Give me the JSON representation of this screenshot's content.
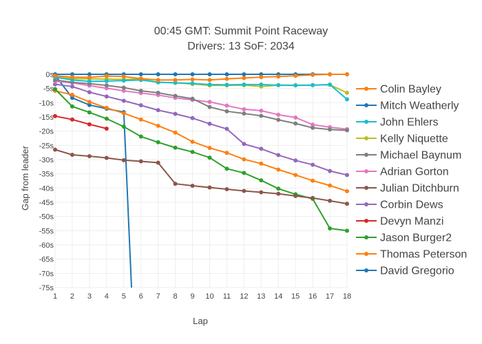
{
  "chart_data": {
    "type": "line",
    "title_line1": "00:45 GMT:  Summit Point Raceway",
    "title_line2": "Drivers: 13 SoF: 2034",
    "xlabel": "Lap",
    "ylabel": "Gap from leader",
    "xlim": [
      1,
      18
    ],
    "ylim": [
      -75,
      0
    ],
    "x_ticks": [
      1,
      2,
      3,
      4,
      5,
      6,
      7,
      8,
      9,
      10,
      11,
      12,
      13,
      14,
      15,
      16,
      17,
      18
    ],
    "y_ticks": [
      0,
      -5,
      -10,
      -15,
      -20,
      -25,
      -30,
      -35,
      -40,
      -45,
      -50,
      -55,
      -60,
      -65,
      -70,
      -75
    ],
    "y_tick_labels": [
      "0s",
      "-5s",
      "-10s",
      "-15s",
      "-20s",
      "-25s",
      "-30s",
      "-35s",
      "-40s",
      "-45s",
      "-50s",
      "-55s",
      "-60s",
      "-65s",
      "-70s",
      "-75s"
    ],
    "legend_position": "right",
    "series": [
      {
        "name": "Colin Bayley",
        "color": "#ff7f0e",
        "x": [
          1,
          2,
          3,
          4,
          5,
          6,
          7,
          8,
          9,
          10,
          11,
          12,
          13,
          14,
          15,
          16,
          17,
          18
        ],
        "y": [
          -0.5,
          -1,
          -1.1,
          -0.6,
          -0.8,
          -1.5,
          -2,
          -2,
          -1.8,
          -2,
          -1.6,
          -1.3,
          -1,
          -0.8,
          -0.5,
          -0.2,
          0,
          0
        ]
      },
      {
        "name": "Mitch Weatherly",
        "color": "#1f77b4",
        "x": [
          1,
          2,
          3,
          4,
          5,
          6,
          7,
          8,
          9,
          10,
          11,
          12,
          13,
          14,
          15,
          16,
          17,
          18
        ],
        "y": [
          0,
          0,
          0,
          0,
          0,
          0,
          0,
          0,
          0,
          0,
          0,
          0,
          0,
          0,
          0,
          0,
          0,
          0
        ]
      },
      {
        "name": "John Ehlers",
        "color": "#17becf",
        "x": [
          1,
          2,
          3,
          4,
          5,
          6,
          7,
          8,
          9,
          10,
          11,
          12,
          13,
          14,
          15,
          16,
          17,
          18
        ],
        "y": [
          -1,
          -2,
          -2.5,
          -2.4,
          -2.2,
          -2,
          -2.8,
          -3,
          -3.2,
          -3.6,
          -3.7,
          -3.6,
          -3.6,
          -3.8,
          -3.9,
          -3.8,
          -3.6,
          -8.8
        ]
      },
      {
        "name": "Kelly Niquette",
        "color": "#bcbd22",
        "x": [
          1,
          2,
          3,
          4,
          5,
          6,
          7,
          8,
          9,
          10,
          11,
          12,
          13,
          14,
          15,
          16,
          17,
          18
        ],
        "y": [
          -1,
          -1.5,
          -1.6,
          -1.7,
          -1.8,
          -1.7,
          -2.8,
          -3,
          -3.4,
          -3.9,
          -3.9,
          -3.8,
          -4.3,
          -3.8,
          -3.8,
          -3.8,
          -3.7,
          -6.5
        ]
      },
      {
        "name": "Michael Baynum",
        "color": "#7f7f7f",
        "x": [
          1,
          2,
          3,
          4,
          5,
          6,
          7,
          8,
          9,
          10,
          11,
          12,
          13,
          14,
          15,
          16,
          17,
          18
        ],
        "y": [
          -2,
          -2.8,
          -3.3,
          -3.9,
          -4.7,
          -5.8,
          -6.5,
          -7.6,
          -8.6,
          -11.5,
          -13,
          -13.8,
          -14.6,
          -16,
          -17.3,
          -18.8,
          -19.4,
          -19.7
        ]
      },
      {
        "name": "Adrian Gorton",
        "color": "#e377c2",
        "x": [
          1,
          2,
          3,
          4,
          5,
          6,
          7,
          8,
          9,
          10,
          11,
          12,
          13,
          14,
          15,
          16,
          17,
          18
        ],
        "y": [
          -2.5,
          -3,
          -4,
          -4.9,
          -5.8,
          -6.6,
          -7.3,
          -8.3,
          -9,
          -9.7,
          -11,
          -12.3,
          -12.8,
          -14.2,
          -15.2,
          -17.7,
          -18.6,
          -19.3
        ]
      },
      {
        "name": "Julian Ditchburn",
        "color": "#8c564b",
        "x": [
          1,
          2,
          3,
          4,
          5,
          6,
          7,
          8,
          9,
          10,
          11,
          12,
          13,
          14,
          15,
          16,
          17,
          18
        ],
        "y": [
          -26.5,
          -28.3,
          -28.8,
          -29.4,
          -30.2,
          -30.6,
          -31.1,
          -38.5,
          -39.2,
          -39.8,
          -40.4,
          -41,
          -41.5,
          -42,
          -42.8,
          -43.5,
          -44.5,
          -45.5
        ]
      },
      {
        "name": "Corbin Dews",
        "color": "#9467bd",
        "x": [
          1,
          2,
          3,
          4,
          5,
          6,
          7,
          8,
          9,
          10,
          11,
          12,
          13,
          14,
          15,
          16,
          17,
          18
        ],
        "y": [
          -3.5,
          -4.3,
          -6.3,
          -7.8,
          -9.3,
          -10.9,
          -12.6,
          -13.9,
          -15.4,
          -17.4,
          -19.2,
          -24.5,
          -26.2,
          -28.4,
          -30.3,
          -31.8,
          -34,
          -35.4
        ]
      },
      {
        "name": "Devyn Manzi",
        "color": "#d62728",
        "x": [
          1,
          2,
          3,
          4
        ],
        "y": [
          -14.7,
          -15.9,
          -17.6,
          -19.1
        ]
      },
      {
        "name": "Jason Burger2",
        "color": "#2ca02c",
        "x": [
          1,
          2,
          3,
          4,
          5,
          6,
          7,
          8,
          9,
          10,
          11,
          12,
          13,
          14,
          15,
          16,
          17,
          18
        ],
        "y": [
          -5.2,
          -11.3,
          -13.4,
          -15.6,
          -18.4,
          -21.9,
          -23.9,
          -25.8,
          -27.3,
          -29.3,
          -33.2,
          -34.7,
          -37.3,
          -40.2,
          -42.2,
          -43.8,
          -54.2,
          -55
        ]
      },
      {
        "name": "Thomas Peterson",
        "color": "#ff7f0e",
        "x": [
          1,
          2,
          3,
          4,
          5,
          6,
          7,
          8,
          9,
          10,
          11,
          12,
          13,
          14,
          15,
          16,
          17,
          18
        ],
        "y": [
          -5.8,
          -7.2,
          -9.7,
          -11.8,
          -13.7,
          -15.9,
          -18.1,
          -20.5,
          -23.7,
          -25.9,
          -27.6,
          -29.9,
          -31.4,
          -33.5,
          -35.4,
          -37.4,
          -39.1,
          -41.1
        ]
      },
      {
        "name": "David Gregorio",
        "color": "#1f77b4",
        "x": [
          1,
          2,
          3,
          4,
          5,
          5.45
        ],
        "y": [
          -0.3,
          -8.3,
          -10.8,
          -12.1,
          -13.3,
          -75
        ]
      }
    ]
  }
}
